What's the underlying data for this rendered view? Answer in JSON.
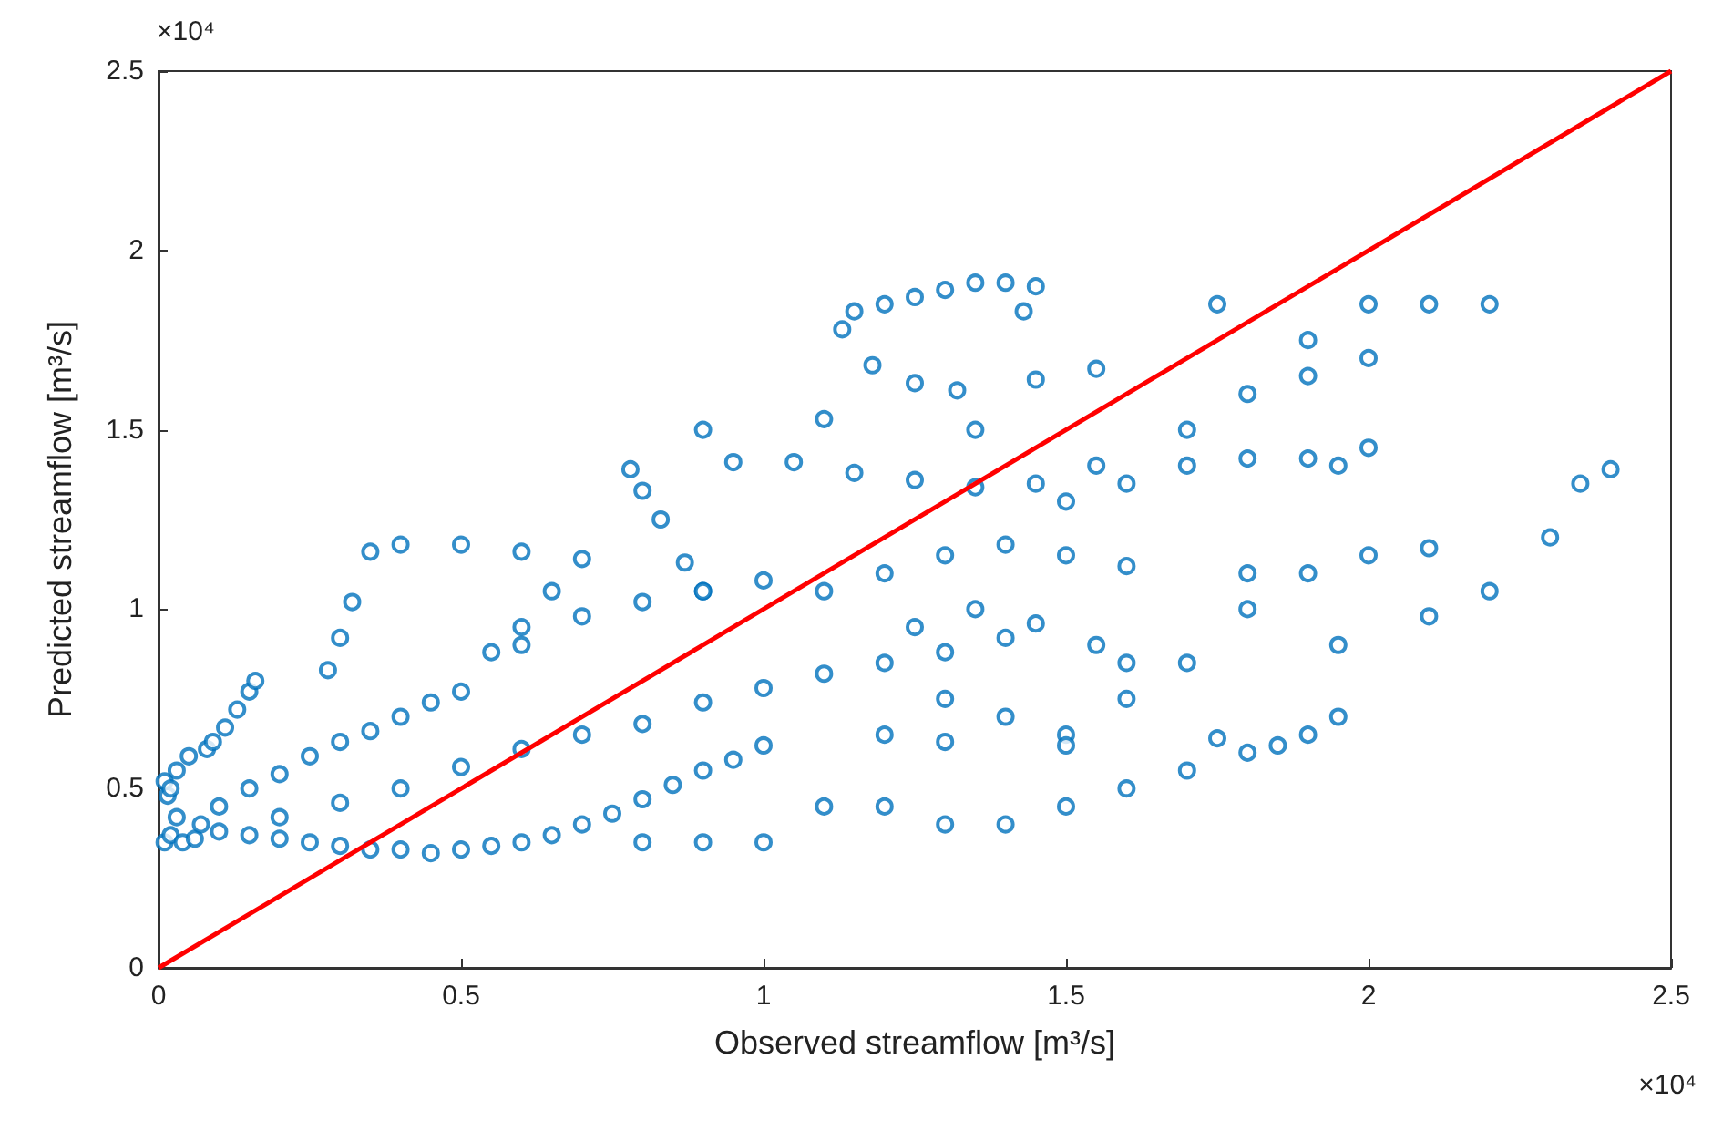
{
  "chart_data": {
    "type": "scatter",
    "xlabel": "Observed streamflow [m³/s]",
    "ylabel": "Predicted streamflow [m³/s]",
    "annotations": [
      "×10⁴",
      "×10⁴"
    ],
    "xlim": [
      0,
      2.5
    ],
    "ylim": [
      0,
      2.5
    ],
    "xticks": [
      0,
      0.5,
      1,
      1.5,
      2,
      2.5
    ],
    "yticks": [
      0,
      0.5,
      1,
      1.5,
      2,
      2.5
    ],
    "grid": false,
    "marker": "circle",
    "series": [
      {
        "color": "#0072bd",
        "x": [
          0.01,
          0.02,
          0.03,
          0.015,
          0.01,
          0.03,
          0.05,
          0.08,
          0.04,
          0.06,
          0.02,
          0.07,
          0.09,
          0.11,
          0.13,
          0.15,
          0.16,
          0.1,
          0.15,
          0.2,
          0.25,
          0.3,
          0.35,
          0.4,
          0.45,
          0.5,
          0.55,
          0.6,
          0.65,
          0.7,
          0.75,
          0.8,
          0.85,
          0.9,
          0.95,
          1.0,
          0.2,
          0.3,
          0.4,
          0.5,
          0.6,
          0.7,
          0.8,
          0.9,
          1.0,
          1.1,
          1.2,
          1.3,
          1.4,
          0.1,
          0.15,
          0.2,
          0.25,
          0.3,
          0.35,
          0.4,
          0.45,
          0.5,
          0.6,
          0.7,
          0.8,
          0.9,
          1.0,
          0.28,
          0.3,
          0.32,
          0.35,
          0.4,
          0.5,
          0.6,
          0.7,
          0.65,
          0.6,
          0.55,
          0.78,
          0.8,
          0.83,
          0.87,
          0.9,
          0.95,
          1.05,
          1.15,
          1.25,
          1.35,
          1.45,
          1.55,
          1.13,
          1.15,
          1.2,
          1.25,
          1.3,
          1.35,
          1.4,
          1.45,
          1.43,
          1.18,
          1.25,
          1.32,
          1.45,
          1.55,
          0.9,
          1.1,
          1.35,
          1.1,
          1.2,
          1.3,
          1.4,
          1.5,
          1.6,
          1.25,
          1.35,
          1.45,
          1.55,
          1.6,
          1.3,
          1.4,
          1.5,
          1.6,
          1.7,
          1.8,
          1.9,
          2.0,
          2.1,
          0.8,
          0.9,
          1.0,
          1.1,
          1.2,
          1.3,
          1.4,
          1.5,
          1.6,
          1.7,
          1.8,
          1.9,
          1.95,
          1.2,
          1.3,
          1.5,
          1.75,
          1.85,
          1.5,
          1.6,
          1.7,
          1.8,
          1.9,
          2.0,
          1.7,
          1.8,
          1.9,
          2.0,
          1.8,
          1.95,
          2.1,
          2.2,
          2.3,
          2.35,
          2.4,
          1.75,
          1.9,
          2.0,
          2.1,
          2.2,
          1.95
        ],
        "values": [
          0.35,
          0.37,
          0.42,
          0.48,
          0.52,
          0.55,
          0.59,
          0.61,
          0.35,
          0.36,
          0.5,
          0.4,
          0.63,
          0.67,
          0.72,
          0.77,
          0.8,
          0.38,
          0.37,
          0.36,
          0.35,
          0.34,
          0.33,
          0.33,
          0.32,
          0.33,
          0.34,
          0.35,
          0.37,
          0.4,
          0.43,
          0.47,
          0.51,
          0.55,
          0.58,
          0.62,
          0.42,
          0.46,
          0.5,
          0.56,
          0.61,
          0.65,
          0.68,
          0.74,
          0.78,
          0.82,
          0.85,
          0.88,
          0.92,
          0.45,
          0.5,
          0.54,
          0.59,
          0.63,
          0.66,
          0.7,
          0.74,
          0.77,
          0.9,
          0.98,
          1.02,
          1.05,
          1.08,
          0.83,
          0.92,
          1.02,
          1.16,
          1.18,
          1.18,
          1.16,
          1.14,
          1.05,
          0.95,
          0.88,
          1.39,
          1.33,
          1.25,
          1.13,
          1.05,
          1.41,
          1.41,
          1.38,
          1.36,
          1.34,
          1.35,
          1.4,
          1.78,
          1.83,
          1.85,
          1.87,
          1.89,
          1.91,
          1.91,
          1.9,
          1.83,
          1.68,
          1.63,
          1.61,
          1.64,
          1.67,
          1.5,
          1.53,
          1.5,
          1.05,
          1.1,
          1.15,
          1.18,
          1.15,
          1.12,
          0.95,
          1.0,
          0.96,
          0.9,
          0.85,
          0.75,
          0.7,
          0.65,
          0.75,
          0.85,
          1.0,
          1.1,
          1.15,
          1.17,
          0.35,
          0.35,
          0.35,
          0.45,
          0.45,
          0.4,
          0.4,
          0.45,
          0.5,
          0.55,
          0.6,
          0.65,
          0.7,
          0.65,
          0.63,
          0.62,
          0.64,
          0.62,
          1.3,
          1.35,
          1.5,
          1.6,
          1.65,
          1.7,
          1.4,
          1.42,
          1.42,
          1.45,
          1.1,
          0.9,
          0.98,
          1.05,
          1.2,
          1.35,
          1.39,
          1.85,
          1.75,
          1.85,
          1.85,
          1.85,
          1.4
        ]
      },
      {
        "type": "line",
        "color": "#ff0000",
        "line_style": "solid",
        "marker": "none",
        "x": [
          0,
          2.5
        ],
        "values": [
          0,
          2.5
        ]
      }
    ]
  }
}
